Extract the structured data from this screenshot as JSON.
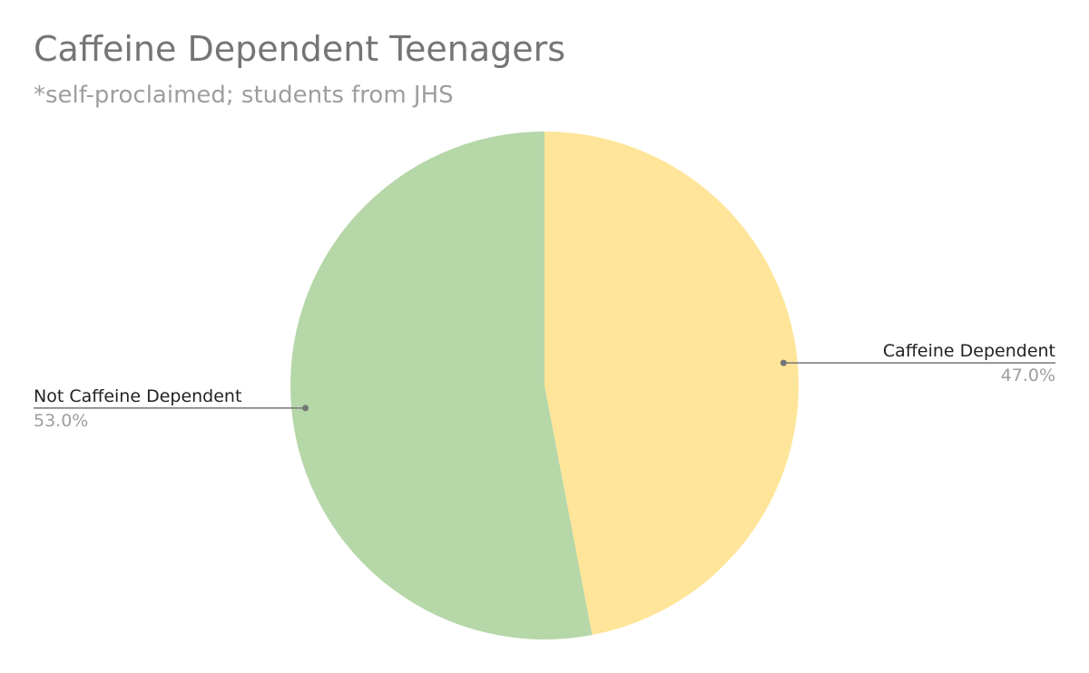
{
  "chart_data": {
    "type": "pie",
    "title": "Caffeine Dependent Teenagers",
    "subtitle": "*self-proclaimed; students from JHS",
    "slices": [
      {
        "label": "Caffeine Dependent",
        "value": 47.0,
        "value_label": "47.0%",
        "color": "#ffe599",
        "label_side": "right"
      },
      {
        "label": "Not Caffeine Dependent",
        "value": 53.0,
        "value_label": "53.0%",
        "color": "#b6d7a8",
        "label_side": "left"
      }
    ],
    "start_angle": "12 o'clock",
    "direction": "clockwise",
    "legend": "none",
    "leader_line_color": "#757575"
  }
}
